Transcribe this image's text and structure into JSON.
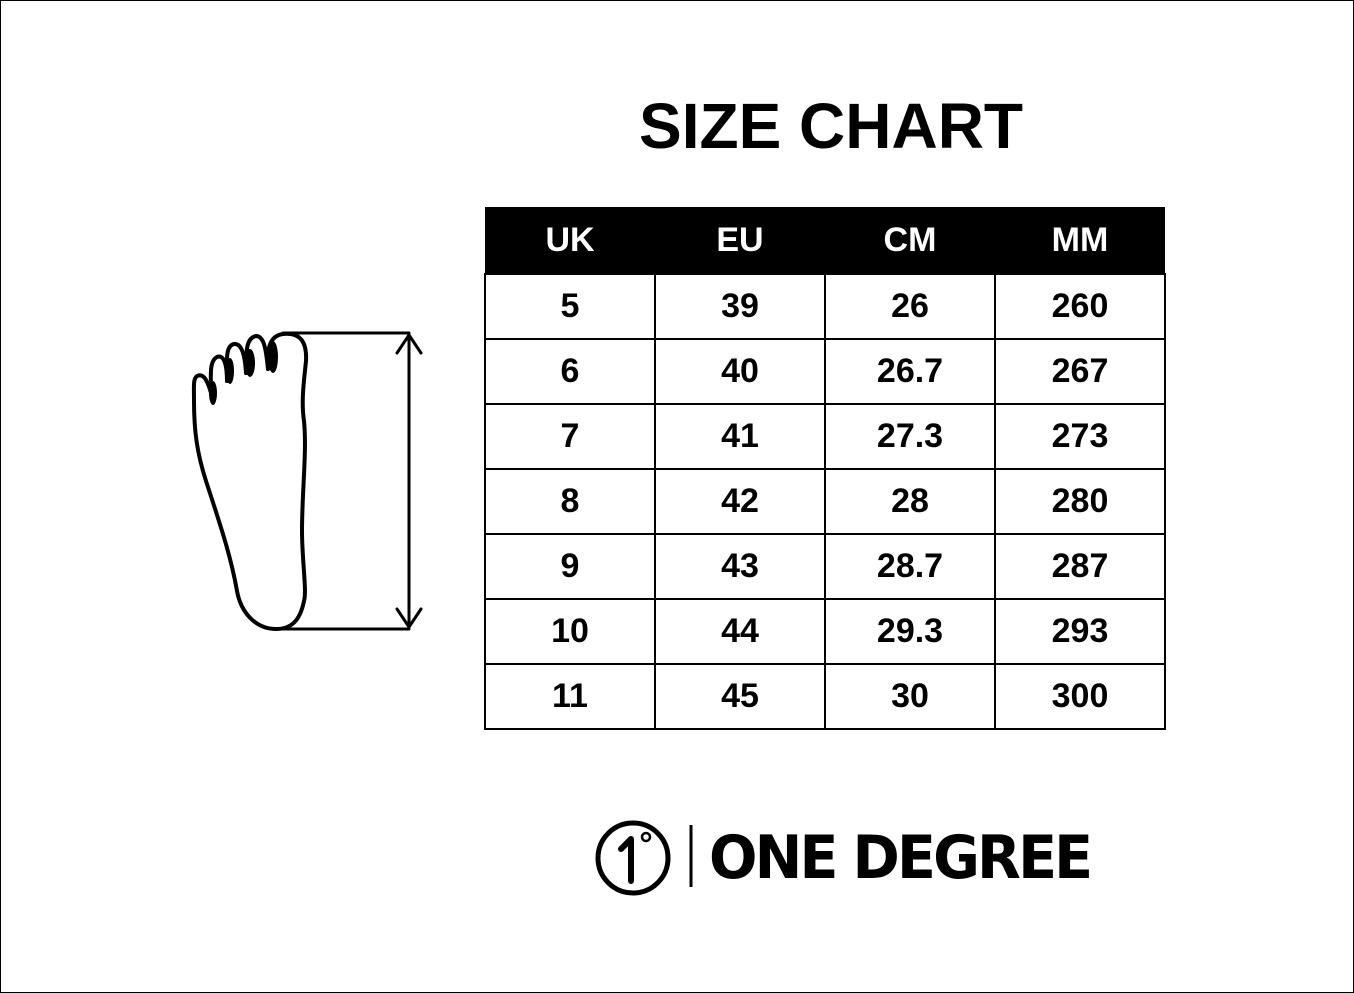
{
  "title": "SIZE CHART",
  "table": {
    "headers": [
      "UK",
      "EU",
      "CM",
      "MM"
    ],
    "rows": [
      [
        "5",
        "39",
        "26",
        "260"
      ],
      [
        "6",
        "40",
        "26.7",
        "267"
      ],
      [
        "7",
        "41",
        "27.3",
        "273"
      ],
      [
        "8",
        "42",
        "28",
        "280"
      ],
      [
        "9",
        "43",
        "28.7",
        "287"
      ],
      [
        "10",
        "44",
        "29.3",
        "293"
      ],
      [
        "11",
        "45",
        "30",
        "300"
      ]
    ]
  },
  "brand": {
    "logo_mark": "1°",
    "name": "ONE DEGREE"
  },
  "colors": {
    "header_bg": "#000000",
    "header_text": "#ffffff"
  }
}
